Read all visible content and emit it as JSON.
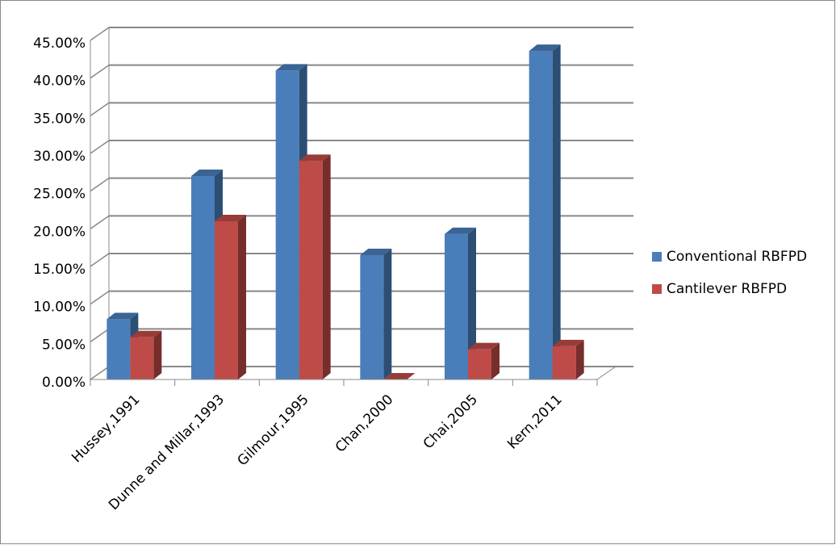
{
  "chart_data": {
    "type": "bar3d",
    "categories": [
      "Hussey,1991",
      "Dunne and Millar,1993",
      "Gilmour,1995",
      "Chan,2000",
      "Chai,2005",
      "Kern,2011"
    ],
    "series": [
      {
        "name": "Conventional RBFPD",
        "color": "#4a7ebb",
        "values": [
          8,
          27,
          41,
          16.5,
          19.3,
          43.6
        ]
      },
      {
        "name": "Cantilever RBFPD",
        "color": "#be4b48",
        "values": [
          5.6,
          21,
          29,
          0,
          4,
          4.4
        ]
      }
    ],
    "ylim": [
      0,
      45
    ],
    "yticks": [
      {
        "value": 0,
        "label": "0.00%"
      },
      {
        "value": 5,
        "label": "5.00%"
      },
      {
        "value": 10,
        "label": "10.00%"
      },
      {
        "value": 15,
        "label": "15.00%"
      },
      {
        "value": 20,
        "label": "20.00%"
      },
      {
        "value": 25,
        "label": "25.00%"
      },
      {
        "value": 30,
        "label": "30.00%"
      },
      {
        "value": 35,
        "label": "35.00%"
      },
      {
        "value": 40,
        "label": "40.00%"
      },
      {
        "value": 45,
        "label": "45.00%"
      }
    ],
    "grid": true,
    "legend": "right"
  }
}
